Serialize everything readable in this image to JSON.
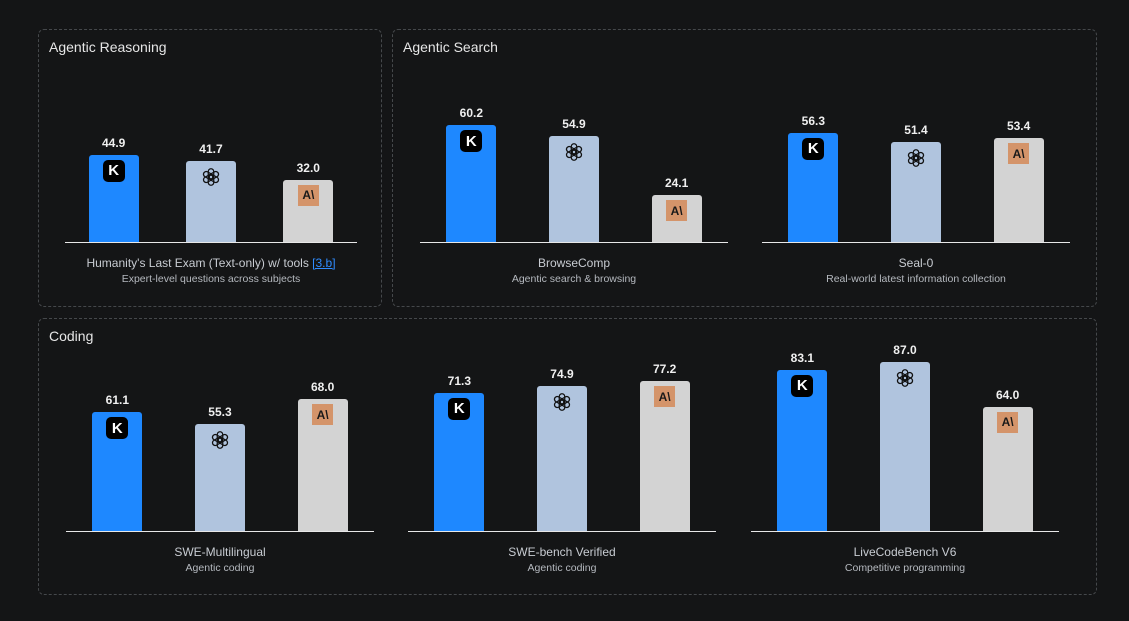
{
  "colors": {
    "kimi": "#1e88ff",
    "openai": "#b0c4de",
    "anthropic": "#d3d3d3"
  },
  "chart_data": {
    "type": "bar",
    "models": [
      "kimi",
      "openai",
      "anthropic"
    ],
    "ylim": [
      0,
      100
    ],
    "panels": [
      {
        "title": "Agentic Reasoning",
        "groups": [
          {
            "name": "Humanity's Last Exam (Text-only) w/ tools",
            "ref": "[3.b]",
            "subtitle": "Expert-level questions across subjects",
            "values": [
              "44.9",
              "41.7",
              "32.0"
            ]
          }
        ]
      },
      {
        "title": "Agentic Search",
        "groups": [
          {
            "name": "BrowseComp",
            "subtitle": "Agentic search & browsing",
            "values": [
              "60.2",
              "54.9",
              "24.1"
            ]
          },
          {
            "name": "Seal-0",
            "subtitle": "Real-world latest information collection",
            "values": [
              "56.3",
              "51.4",
              "53.4"
            ]
          }
        ]
      },
      {
        "title": "Coding",
        "groups": [
          {
            "name": "SWE-Multilingual",
            "subtitle": "Agentic coding",
            "values": [
              "61.1",
              "55.3",
              "68.0"
            ]
          },
          {
            "name": "SWE-bench Verified",
            "subtitle": "Agentic coding",
            "values": [
              "71.3",
              "74.9",
              "77.2"
            ]
          },
          {
            "name": "LiveCodeBench V6",
            "subtitle": "Competitive programming",
            "values": [
              "83.1",
              "87.0",
              "64.0"
            ]
          }
        ]
      }
    ]
  },
  "logos": {
    "kimi": "K",
    "anthropic": "A\\"
  }
}
